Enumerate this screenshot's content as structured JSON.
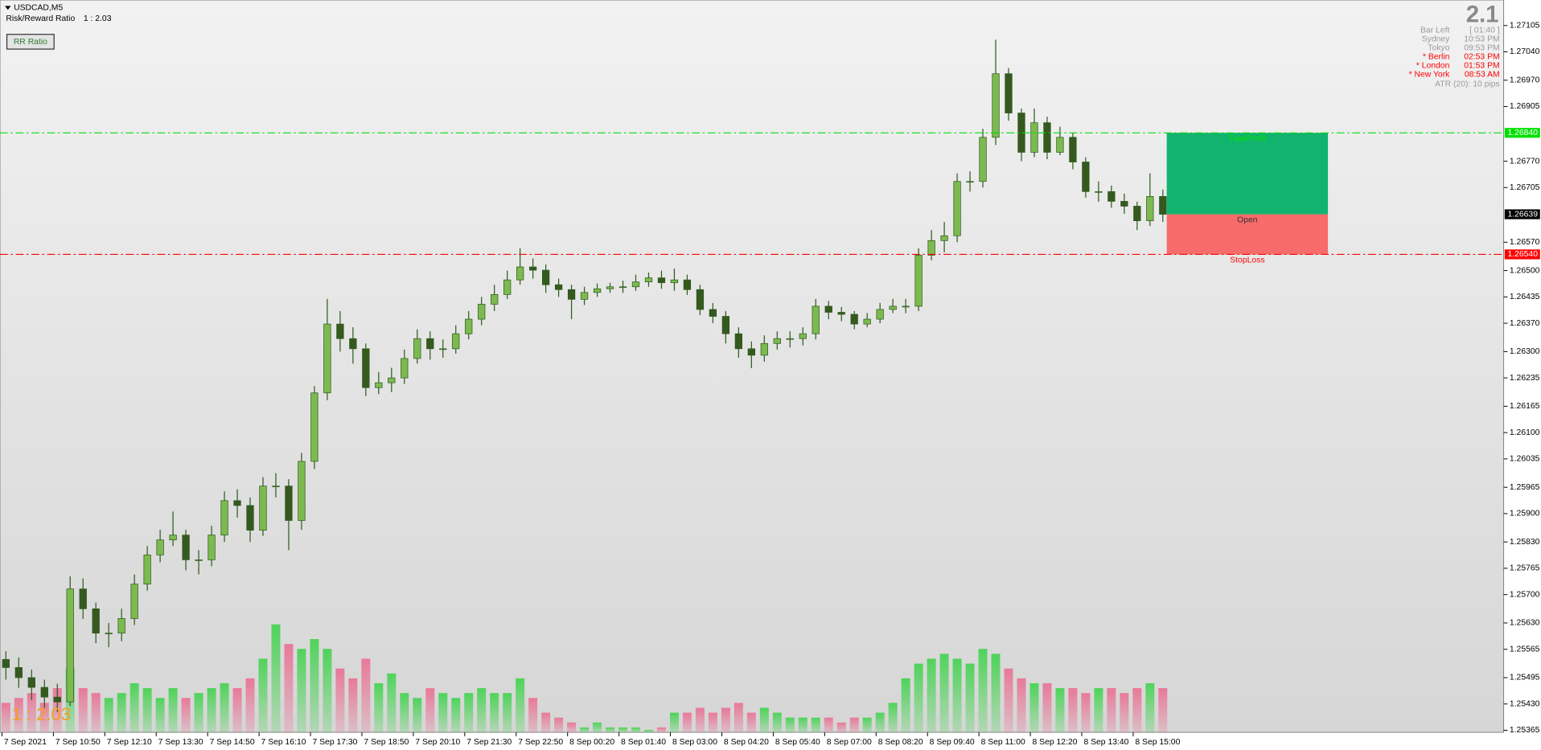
{
  "header": {
    "symbol": "USDCAD,M5",
    "rr_label": "Risk/Reward Ratio",
    "rr_value": "1 : 2.03",
    "button": "RR Ratio"
  },
  "info": {
    "big": "2.1",
    "rows": [
      {
        "label": "Bar Left",
        "value": "[ 01:40 ]",
        "color": "#9a9a9a"
      },
      {
        "label": "Sydney",
        "value": "10:53 PM",
        "color": "#9a9a9a"
      },
      {
        "label": "Tokyo",
        "value": "09:53 PM",
        "color": "#9a9a9a"
      },
      {
        "label": "* Berlin",
        "value": "02:53 PM",
        "color": "#ff0000"
      },
      {
        "label": "* London",
        "value": "01:53 PM",
        "color": "#ff0000"
      },
      {
        "label": "* New York",
        "value": "08:53 AM",
        "color": "#ff0000"
      }
    ],
    "atr": "ATR (20): 10 pips"
  },
  "chart_data": {
    "type": "candlestick",
    "categories": [
      "7 Sep 2021",
      null,
      null,
      null,
      "7 Sep 10:50",
      null,
      null,
      null,
      "7 Sep 12:10",
      null,
      null,
      null,
      "7 Sep 13:30",
      null,
      null,
      null,
      "7 Sep 14:50",
      null,
      null,
      null,
      "7 Sep 16:10",
      null,
      null,
      null,
      "7 Sep 17:30",
      null,
      null,
      null,
      "7 Sep 18:50",
      null,
      null,
      null,
      "7 Sep 20:10",
      null,
      null,
      null,
      "7 Sep 21:30",
      null,
      null,
      null,
      "7 Sep 22:50",
      null,
      null,
      null,
      "8 Sep 00:20",
      null,
      null,
      null,
      "8 Sep 01:40",
      null,
      null,
      null,
      "8 Sep 03:00",
      null,
      null,
      null,
      "8 Sep 04:20",
      null,
      null,
      null,
      "8 Sep 05:40",
      null,
      null,
      null,
      "8 Sep 07:00",
      null,
      null,
      null,
      "8 Sep 08:20",
      null,
      null,
      null,
      "8 Sep 09:40",
      null,
      null,
      null,
      "8 Sep 11:00",
      null,
      null,
      null,
      "8 Sep 12:20",
      null,
      null,
      null,
      "8 Sep 13:40",
      null,
      null,
      null,
      "8 Sep 15:00",
      null,
      null
    ],
    "series": [
      {
        "name": "USDCAD,M5",
        "open": [
          1.2554,
          1.2552,
          1.25495,
          1.25471,
          1.25447,
          1.25435,
          1.25714,
          1.25665,
          1.25605,
          1.25605,
          1.25641,
          1.25726,
          1.25798,
          1.25835,
          1.25847,
          1.25786,
          1.25786,
          1.25847,
          1.25932,
          1.2592,
          1.25859,
          1.25968,
          1.25968,
          1.25883,
          1.26029,
          1.26198,
          1.26368,
          1.26332,
          1.26307,
          1.26211,
          1.26223,
          1.26235,
          1.26283,
          1.26332,
          1.26307,
          1.26307,
          1.26344,
          1.2638,
          1.26417,
          1.26441,
          1.26477,
          1.26509,
          1.26501,
          1.26465,
          1.26453,
          1.26429,
          1.26446,
          1.26455,
          1.2646,
          1.2646,
          1.26472,
          1.26482,
          1.2647,
          1.26477,
          1.26453,
          1.26404,
          1.26387,
          1.26344,
          1.26307,
          1.26291,
          1.2632,
          1.26332,
          1.26332,
          1.26344,
          1.26412,
          1.26397,
          1.26392,
          1.26368,
          1.2638,
          1.26404,
          1.26412,
          1.26412,
          1.26538,
          1.26574,
          1.26586,
          1.2672,
          1.2672,
          1.26829,
          1.26986,
          1.26889,
          1.26792,
          1.26865,
          1.26792,
          1.26829,
          1.26768,
          1.26695,
          1.26695,
          1.26671,
          1.26659,
          1.26623,
          1.26683
        ],
        "high": [
          1.2556,
          1.25545,
          1.25515,
          1.2549,
          1.2548,
          1.25745,
          1.2574,
          1.2568,
          1.2563,
          1.25665,
          1.2575,
          1.2582,
          1.2586,
          1.25905,
          1.2586,
          1.2581,
          1.2587,
          1.25955,
          1.2596,
          1.2594,
          1.2599,
          1.26,
          1.25985,
          1.2605,
          1.26215,
          1.2643,
          1.264,
          1.2636,
          1.2632,
          1.2625,
          1.2626,
          1.26305,
          1.26355,
          1.2635,
          1.2633,
          1.26365,
          1.264,
          1.26435,
          1.26465,
          1.265,
          1.26555,
          1.2653,
          1.26515,
          1.2648,
          1.26465,
          1.2646,
          1.26468,
          1.2647,
          1.26475,
          1.2649,
          1.26495,
          1.265,
          1.26505,
          1.2649,
          1.26465,
          1.2642,
          1.264,
          1.2636,
          1.26325,
          1.2634,
          1.2635,
          1.2635,
          1.2636,
          1.2643,
          1.26425,
          1.2641,
          1.264,
          1.26395,
          1.2642,
          1.2643,
          1.2643,
          1.26555,
          1.266,
          1.2662,
          1.2674,
          1.26745,
          1.2685,
          1.2707,
          1.27,
          1.269,
          1.269,
          1.2688,
          1.26855,
          1.2684,
          1.2678,
          1.2672,
          1.2671,
          1.2669,
          1.2667,
          1.2674,
          1.267
        ],
        "low": [
          1.2549,
          1.2547,
          1.2544,
          1.2542,
          1.2541,
          1.25425,
          1.2564,
          1.2558,
          1.2557,
          1.25585,
          1.25625,
          1.2571,
          1.2578,
          1.2582,
          1.2576,
          1.2575,
          1.2577,
          1.2583,
          1.2589,
          1.2583,
          1.25845,
          1.2594,
          1.2581,
          1.2586,
          1.2601,
          1.2618,
          1.263,
          1.2627,
          1.2619,
          1.26195,
          1.262,
          1.2622,
          1.2627,
          1.2628,
          1.26285,
          1.26295,
          1.2633,
          1.26365,
          1.264,
          1.2643,
          1.26465,
          1.2648,
          1.26445,
          1.26435,
          1.2638,
          1.26415,
          1.26435,
          1.26445,
          1.26445,
          1.2645,
          1.2646,
          1.26455,
          1.2645,
          1.2644,
          1.2639,
          1.2637,
          1.2632,
          1.26285,
          1.26259,
          1.26275,
          1.26305,
          1.2631,
          1.26315,
          1.2633,
          1.2638,
          1.26375,
          1.26355,
          1.2636,
          1.2637,
          1.26395,
          1.26395,
          1.264,
          1.26525,
          1.26545,
          1.2657,
          1.26695,
          1.26705,
          1.2681,
          1.2687,
          1.2677,
          1.2678,
          1.26775,
          1.26785,
          1.2675,
          1.2668,
          1.2667,
          1.26655,
          1.2664,
          1.266,
          1.2661,
          1.2662
        ],
        "close": [
          1.2552,
          1.25495,
          1.25471,
          1.25447,
          1.25435,
          1.25714,
          1.25665,
          1.25605,
          1.25605,
          1.25641,
          1.25726,
          1.25798,
          1.25835,
          1.25847,
          1.25786,
          1.25786,
          1.25847,
          1.25932,
          1.2592,
          1.25859,
          1.25968,
          1.25968,
          1.25883,
          1.26029,
          1.26198,
          1.26368,
          1.26332,
          1.26307,
          1.26211,
          1.26223,
          1.26235,
          1.26283,
          1.26332,
          1.26307,
          1.26307,
          1.26344,
          1.2638,
          1.26417,
          1.26441,
          1.26477,
          1.26509,
          1.26501,
          1.26465,
          1.26453,
          1.26429,
          1.26446,
          1.26455,
          1.2646,
          1.2646,
          1.26472,
          1.26482,
          1.2647,
          1.26477,
          1.26453,
          1.26404,
          1.26387,
          1.26344,
          1.26307,
          1.26291,
          1.2632,
          1.26332,
          1.26332,
          1.26344,
          1.26412,
          1.26397,
          1.26392,
          1.26368,
          1.2638,
          1.26404,
          1.26412,
          1.26412,
          1.26538,
          1.26574,
          1.26586,
          1.2672,
          1.2672,
          1.26829,
          1.26986,
          1.26889,
          1.26792,
          1.26865,
          1.26792,
          1.26829,
          1.26768,
          1.26695,
          1.26695,
          1.26671,
          1.26659,
          1.26623,
          1.26683,
          1.26639
        ],
        "volume": [
          60,
          70,
          80,
          60,
          90,
          130,
          90,
          80,
          70,
          80,
          100,
          90,
          70,
          90,
          70,
          80,
          90,
          100,
          90,
          110,
          150,
          220,
          180,
          170,
          190,
          170,
          130,
          110,
          150,
          100,
          120,
          80,
          70,
          90,
          80,
          70,
          80,
          90,
          80,
          80,
          110,
          70,
          40,
          30,
          20,
          10,
          20,
          10,
          10,
          10,
          5,
          10,
          40,
          40,
          50,
          40,
          50,
          60,
          40,
          50,
          40,
          30,
          30,
          30,
          30,
          20,
          30,
          30,
          40,
          60,
          110,
          140,
          150,
          160,
          150,
          140,
          170,
          160,
          130,
          110,
          100,
          100,
          90,
          90,
          80,
          90,
          90,
          80,
          90,
          100,
          90
        ]
      }
    ],
    "candle_outline": "#2f5a1e",
    "up_color": "#7cba4f",
    "down_color": "#35591f",
    "volume_up_color": "#4fd35a",
    "volume_down_color": "#e8799a",
    "ylim": [
      1.2536,
      1.27168
    ],
    "yticks": [
      1.27105,
      {
        "value": 1.2704,
        "label": "1.27040"
      },
      {
        "value": 1.2697,
        "label": "1.26970"
      },
      1.26905,
      {
        "value": 1.2677,
        "label": "1.26770"
      },
      1.26705,
      {
        "value": 1.2657,
        "label": "1.26570"
      },
      {
        "value": 1.265,
        "label": "1.26500"
      },
      1.26435,
      {
        "value": 1.2637,
        "label": "1.26370"
      },
      {
        "value": 1.263,
        "label": "1.26300"
      },
      1.26235,
      1.26165,
      {
        "value": 1.261,
        "label": "1.26100"
      },
      1.26035,
      1.25965,
      {
        "value": 1.259,
        "label": "1.25900"
      },
      {
        "value": 1.2583,
        "label": "1.25830"
      },
      1.25765,
      {
        "value": 1.257,
        "label": "1.25700"
      },
      {
        "value": 1.2563,
        "label": "1.25630"
      },
      1.25565,
      1.25495,
      {
        "value": 1.2543,
        "label": "1.25430"
      },
      1.25365
    ],
    "levels": [
      {
        "name": "TakeProfit",
        "value": 1.2684,
        "label": "1.26840",
        "color": "#00e000",
        "fill": "#12b36e",
        "line": true
      },
      {
        "name": "Open",
        "value": 1.26639,
        "label": "1.26639",
        "color": "#000000",
        "line": false
      },
      {
        "name": "StopLoss",
        "value": 1.2654,
        "label": "1.26540",
        "color": "#ff0000",
        "fill": "#f76b6b",
        "line": true
      }
    ]
  }
}
